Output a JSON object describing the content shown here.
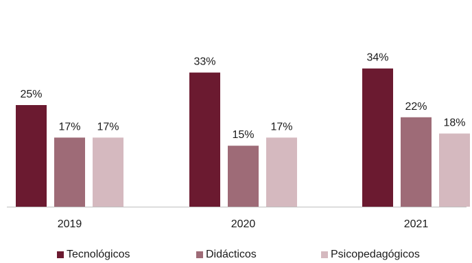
{
  "chart_data": {
    "type": "bar",
    "categories": [
      "2019",
      "2020",
      "2021"
    ],
    "series": [
      {
        "name": "Tecnológicos",
        "values": [
          25,
          33,
          34
        ],
        "labels": [
          "25%",
          "33%",
          "34%"
        ],
        "color": "#6b1a30"
      },
      {
        "name": "Didácticos",
        "values": [
          17,
          15,
          22
        ],
        "labels": [
          "17%",
          "15%",
          "22%"
        ],
        "color": "#9e6b77"
      },
      {
        "name": "Psicopedagógicos",
        "values": [
          17,
          17,
          18
        ],
        "labels": [
          "17%",
          "17%",
          "18%"
        ],
        "color": "#d5b9bf"
      }
    ],
    "unit": "%",
    "ylim": [
      0,
      40
    ],
    "legend_position": "bottom",
    "grid": false
  }
}
